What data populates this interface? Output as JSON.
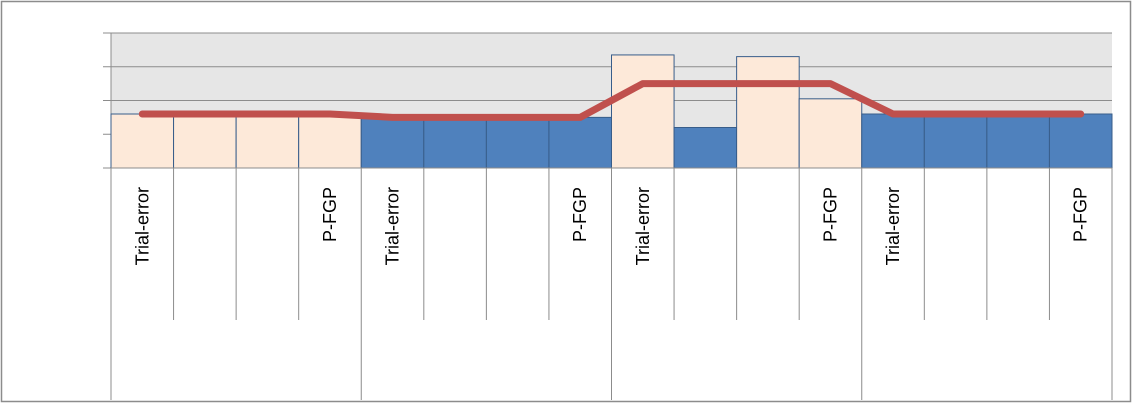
{
  "chart_data": {
    "type": "bar",
    "categories": [
      "Trial-error",
      "",
      "",
      "P-FGP",
      "Trial-error",
      "",
      "",
      "P-FGP",
      "Trial-error",
      "",
      "",
      "P-FGP",
      "Trial-error",
      "",
      "",
      "P-FGP"
    ],
    "groups": [
      {
        "name": "",
        "start": 0,
        "end": 4
      },
      {
        "name": "",
        "start": 4,
        "end": 8
      },
      {
        "name": "",
        "start": 8,
        "end": 12
      },
      {
        "name": "",
        "start": 12,
        "end": 16
      }
    ],
    "series": [
      {
        "name": "",
        "type": "bar",
        "values": [
          1.6,
          1.6,
          1.6,
          1.6,
          1.5,
          1.5,
          1.5,
          1.5,
          3.35,
          1.2,
          3.3,
          2.05,
          1.6,
          1.6,
          1.6,
          1.6
        ],
        "colors": [
          "#fde9d9",
          "#fde9d9",
          "#fde9d9",
          "#fde9d9",
          "#4f81bd",
          "#4f81bd",
          "#4f81bd",
          "#4f81bd",
          "#fde9d9",
          "#4f81bd",
          "#fde9d9",
          "#fde9d9",
          "#4f81bd",
          "#4f81bd",
          "#4f81bd",
          "#4f81bd"
        ]
      },
      {
        "name": "",
        "type": "line",
        "color": "#c0504d",
        "points": [
          [
            0.5,
            1.6
          ],
          [
            3.5,
            1.6
          ],
          [
            4.5,
            1.5
          ],
          [
            7.5,
            1.5
          ],
          [
            8.5,
            2.5
          ],
          [
            11.5,
            2.5
          ],
          [
            12.5,
            1.6
          ],
          [
            15.5,
            1.6
          ]
        ]
      }
    ],
    "ylim": [
      0,
      4
    ],
    "ytick_count": 5,
    "grid": true,
    "legend": "none",
    "title": "",
    "xlabel": "",
    "ylabel": ""
  },
  "colors": {
    "plot_background": "#e6e6e6",
    "gridline": "#8c8c8c",
    "bar_outline": "#385d8a",
    "frame": "#8c8c8c"
  }
}
